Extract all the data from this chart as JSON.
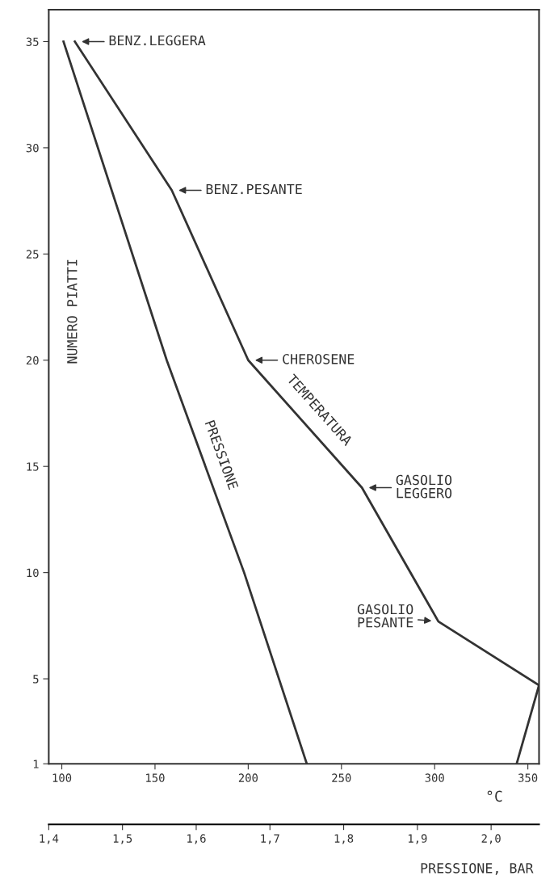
{
  "chart_data": {
    "type": "line",
    "ylabel": "NUMERO PIATTI",
    "xlabel": "°C",
    "x2label": "PRESSIONE, BAR",
    "ylim": [
      1,
      36.5
    ],
    "yticks": [
      1,
      5,
      10,
      15,
      20,
      25,
      30,
      35
    ],
    "xlim": [
      93,
      356
    ],
    "xticks": [
      100,
      150,
      200,
      250,
      300,
      350
    ],
    "x2lim": [
      1.4,
      2.065
    ],
    "x2ticks": [
      {
        "value": 1.4,
        "label": "1,4"
      },
      {
        "value": 1.5,
        "label": "1,5"
      },
      {
        "value": 1.6,
        "label": "1,6"
      },
      {
        "value": 1.7,
        "label": "1,7"
      },
      {
        "value": 1.8,
        "label": "1,8"
      },
      {
        "value": 1.9,
        "label": "1,9"
      },
      {
        "value": 2.0,
        "label": "2,0"
      }
    ],
    "series": [
      {
        "name": "TEMPERATURA",
        "color": "#333333",
        "x": [
          107,
          159,
          200,
          261,
          302,
          356,
          344
        ],
        "values": [
          35,
          28,
          20,
          14,
          7.7,
          4.7,
          1
        ]
      },
      {
        "name": "PRESSIONE",
        "color": "#333333",
        "axis": "x2",
        "x": [
          1.42,
          1.56,
          1.665,
          1.75
        ],
        "values": [
          35,
          20,
          10,
          1
        ]
      }
    ],
    "annotations": [
      {
        "text": "BENZ.LEGGERA",
        "x": 107,
        "y": 35
      },
      {
        "text": "BENZ.PESANTE",
        "x": 159,
        "y": 28
      },
      {
        "text": "CHEROSENE",
        "x": 200,
        "y": 20
      },
      {
        "text": "GASOLIO\nLEGGERO",
        "x": 261,
        "y": 14
      },
      {
        "text": "GASOLIO\nPESANTE",
        "x": 302,
        "y": 7.7
      }
    ],
    "grid": false,
    "legend": false
  }
}
